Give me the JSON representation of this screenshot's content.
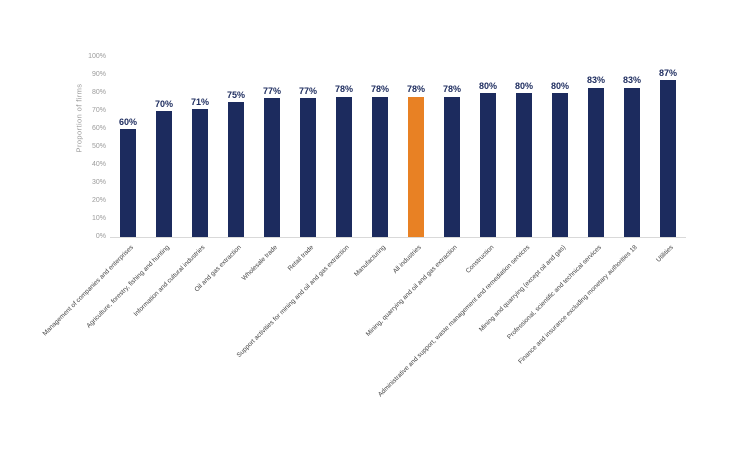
{
  "chart_data": {
    "type": "bar",
    "title": "",
    "xlabel": "",
    "ylabel": "Proportion of firms",
    "ylim": [
      0,
      100
    ],
    "ytick_step": 10,
    "yticks": [
      "0%",
      "10%",
      "20%",
      "30%",
      "40%",
      "50%",
      "60%",
      "70%",
      "80%",
      "90%",
      "100%"
    ],
    "grid": false,
    "legend_position": "none",
    "bar_color": "#1c2b5e",
    "highlight_color": "#e88124",
    "highlight_index": 8,
    "categories": [
      "Management of companies and enterprises",
      "Agriculture, forestry, fishing and hunting",
      "Information and cultural industries",
      "Oil and gas extraction",
      "Wholesale trade",
      "Retail trade",
      "Support activities for mining and oil and gas extraction",
      "Manufacturing",
      "All industries",
      "Mining, quarrying and oil and gas extraction",
      "Construction",
      "Administrative and support, waste management and remediation services",
      "Mining and quarrying (except oil and gas)",
      "Professional, scientific and technical services",
      "Finance and insurance excluding monetary authorities 18",
      "Utilities"
    ],
    "values": [
      60,
      70,
      71,
      75,
      77,
      77,
      78,
      78,
      78,
      78,
      80,
      80,
      80,
      83,
      83,
      87
    ],
    "value_labels": [
      "60%",
      "70%",
      "71%",
      "75%",
      "77%",
      "77%",
      "78%",
      "78%",
      "78%",
      "78%",
      "80%",
      "80%",
      "80%",
      "83%",
      "83%",
      "87%"
    ]
  }
}
